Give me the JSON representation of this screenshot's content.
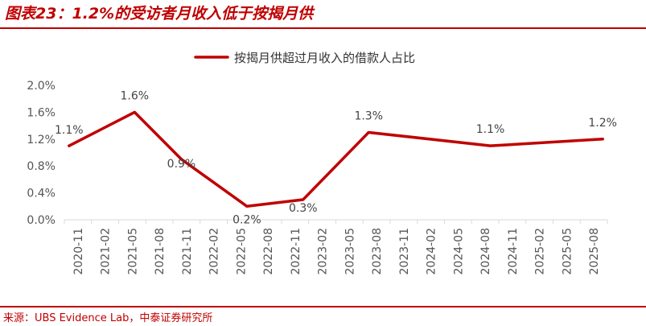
{
  "title": "图表23：1.2%的受访者月收入低于按揭月供",
  "source": "来源：UBS Evidence Lab，中泰证券研究所",
  "colors": {
    "accent": "#c00000",
    "series": "#c00000",
    "axis": "#d9d9d9"
  },
  "chart_data": {
    "type": "line",
    "legend": [
      "按揭月供超过月收入的借款人占比"
    ],
    "legend_position": "top",
    "grid": false,
    "x_ticks": [
      "2020-11",
      "2021-02",
      "2021-05",
      "2021-08",
      "2021-11",
      "2022-02",
      "2022-05",
      "2022-08",
      "2022-11",
      "2023-02",
      "2023-05",
      "2023-08",
      "2023-11",
      "2024-02",
      "2024-05",
      "2024-08",
      "2024-11",
      "2025-02",
      "2025-05",
      "2025-08"
    ],
    "y_ticks": [
      "0.0%",
      "0.4%",
      "0.8%",
      "1.2%",
      "1.6%",
      "2.0%"
    ],
    "ylim": [
      0,
      2.0
    ],
    "series": [
      {
        "name": "按揭月供超过月收入的借款人占比",
        "points": [
          {
            "x": "2020-11",
            "y": 1.1,
            "label": "1.1%"
          },
          {
            "x": "2021-06",
            "y": 1.6,
            "label": "1.6%"
          },
          {
            "x": "2021-11",
            "y": 0.9,
            "label": "0.9%"
          },
          {
            "x": "2022-06",
            "y": 0.2,
            "label": "0.2%"
          },
          {
            "x": "2022-12",
            "y": 0.3,
            "label": "0.3%"
          },
          {
            "x": "2023-07",
            "y": 1.3,
            "label": "1.3%"
          },
          {
            "x": "2024-08",
            "y": 1.1,
            "label": "1.1%"
          },
          {
            "x": "2025-08",
            "y": 1.2,
            "label": "1.2%"
          }
        ]
      }
    ]
  }
}
